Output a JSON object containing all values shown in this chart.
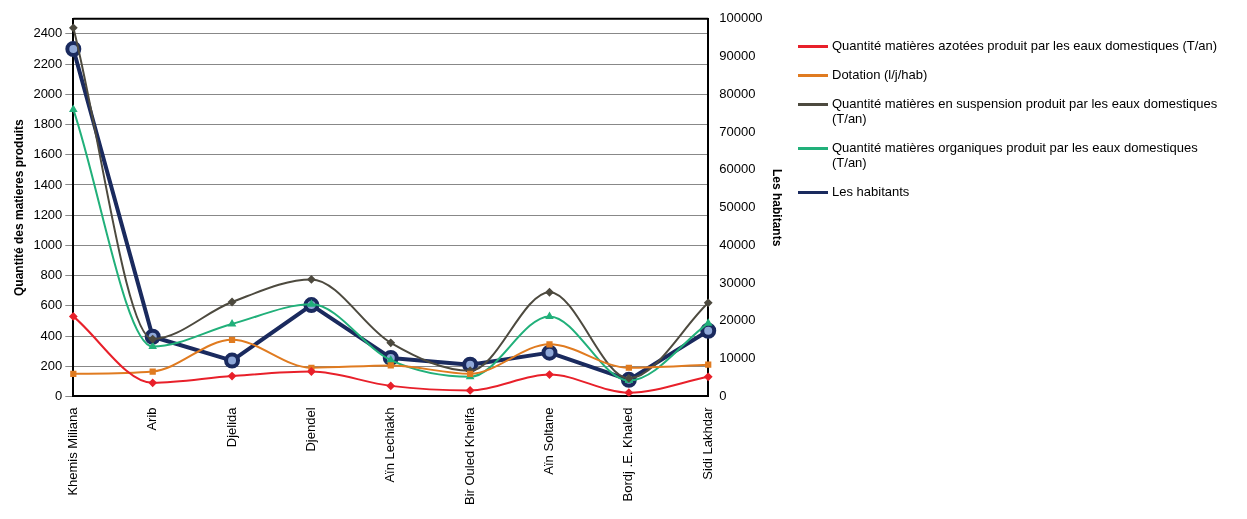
{
  "chart_data": {
    "type": "line",
    "ylabel": "Quantité des matieres produits",
    "y2label": "Les habitants",
    "categories": [
      "Khemis Miliana",
      "Arib",
      "Djelida",
      "Djendel",
      "Aïn Lechiakh",
      "Bir Ouled Khelifa",
      "Aïn Soltane",
      "Bordj .E. Khaled",
      "Sidi Lakhdar"
    ],
    "series": [
      {
        "name": "Quantité matières azotées produit par les eaux domestiques (T/an)",
        "color": "#e8202a",
        "marker": "diamond",
        "values": [
          530,
          90,
          135,
          165,
          70,
          40,
          145,
          25,
          130
        ]
      },
      {
        "name": "Dotation (l/j/hab)",
        "color": "#e07b20",
        "marker": "square",
        "values": [
          150,
          165,
          375,
          190,
          205,
          150,
          345,
          190,
          210
        ]
      },
      {
        "name": "Quantité matières en suspension produit par les eaux domestiques (T/an)",
        "color": "#4d4a3f",
        "marker": "diamond",
        "values": [
          2440,
          380,
          625,
          775,
          355,
          170,
          690,
          120,
          620
        ]
      },
      {
        "name": "Quantité matières organiques produit par les eaux domestiques (T/an)",
        "color": "#21b07a",
        "marker": "triangle",
        "values": [
          1900,
          330,
          480,
          610,
          240,
          130,
          530,
          105,
          485
        ]
      },
      {
        "name": "Les habitants",
        "color": "#1a2a5e",
        "marker": "circle",
        "axis": "y2",
        "values": [
          92000,
          15800,
          9500,
          24200,
          10200,
          8400,
          11600,
          4400,
          17400
        ]
      }
    ],
    "ylim": [
      0,
      2500
    ],
    "yticks": [
      0,
      200,
      400,
      600,
      800,
      1000,
      1200,
      1400,
      1600,
      1800,
      2000,
      2200,
      2400
    ],
    "y2lim": [
      0,
      100000
    ],
    "y2ticks": [
      0,
      10000,
      20000,
      30000,
      40000,
      50000,
      60000,
      70000,
      80000,
      90000,
      100000
    ],
    "grid": "y",
    "legend": "right"
  }
}
